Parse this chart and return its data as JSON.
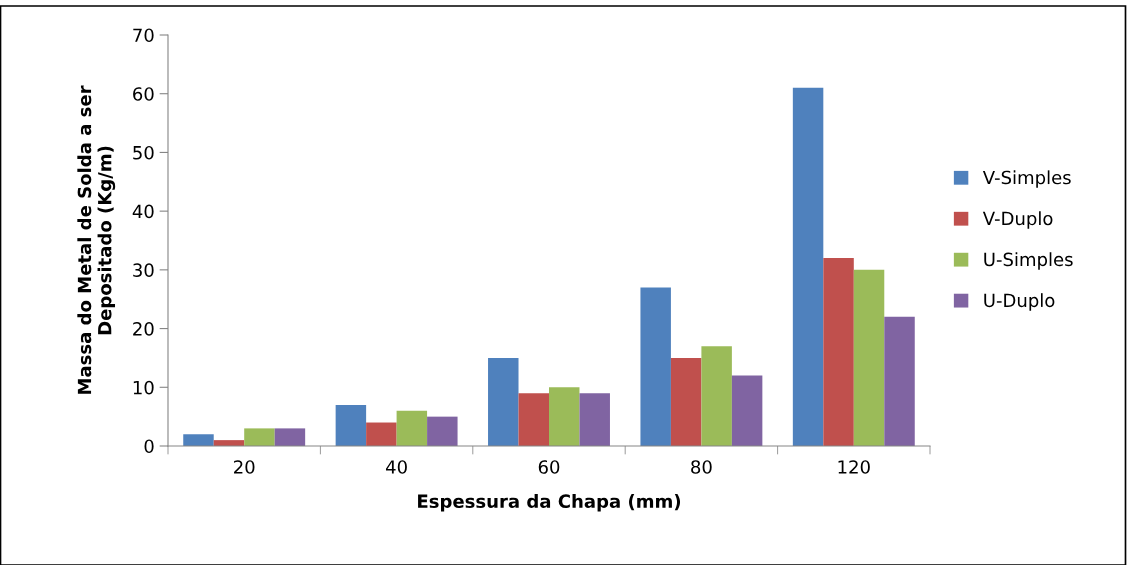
{
  "chart_data": {
    "type": "bar",
    "xlabel": "Espessura da Chapa (mm)",
    "ylabel": "Massa do Metal de Solda a ser\nDepositado (Kg/m)",
    "categories": [
      "20",
      "40",
      "60",
      "80",
      "120"
    ],
    "series": [
      {
        "name": "V-Simples",
        "color": "#4f81bd",
        "values": [
          2,
          7,
          15,
          27,
          61
        ]
      },
      {
        "name": "V-Duplo",
        "color": "#c0504d",
        "values": [
          1,
          4,
          9,
          15,
          32
        ]
      },
      {
        "name": "U-Simples",
        "color": "#9bbb59",
        "values": [
          3,
          6,
          10,
          17,
          30
        ]
      },
      {
        "name": "U-Duplo",
        "color": "#8064a2",
        "values": [
          3,
          5,
          9,
          12,
          22
        ]
      }
    ],
    "ylim": [
      0,
      70
    ],
    "yticks": [
      0,
      10,
      20,
      30,
      40,
      50,
      60,
      70
    ],
    "grid": false,
    "legend": "right"
  }
}
